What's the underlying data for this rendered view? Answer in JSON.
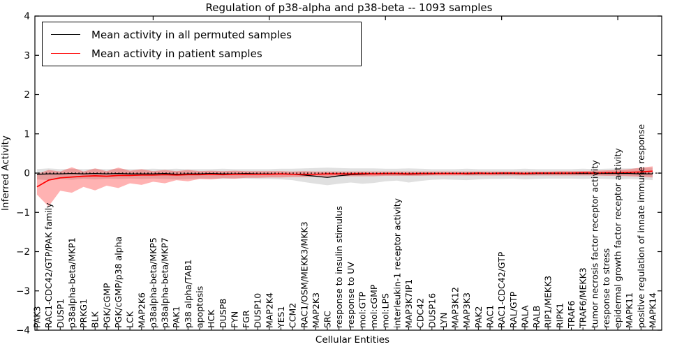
{
  "chart_data": {
    "type": "line",
    "title": "Regulation of p38-alpha and p38-beta -- 1093 samples",
    "xlabel": "Cellular Entities",
    "ylabel": "Inferred Activity",
    "ylim": [
      -4,
      4
    ],
    "yticks": [
      -4,
      -3,
      -2,
      -1,
      0,
      1,
      2,
      3,
      4
    ],
    "grid": false,
    "legend_position": "upper left",
    "zero_reference_line": {
      "value": 0,
      "style": "dotted",
      "color": "#000000"
    },
    "categories": [
      "PAK3",
      "RAC1-CDC42/GTP/PAK family",
      "DUSP1",
      "p38alpha-beta/MKP1",
      "PRKG1",
      "BLK",
      "PGK/cGMP",
      "PGK/cGMP/p38 alpha",
      "LCK",
      "MAP2K6",
      "p38alpha-beta/MKP5",
      "p38alpha-beta/MKP7",
      "PAK1",
      "p38 alpha/TAB1",
      "apoptosis",
      "HCK",
      "DUSP8",
      "FYN",
      "FGR",
      "DUSP10",
      "MAP2K4",
      "YES1",
      "CCM2",
      "RAC1/OSM/MEKK3/MKK3",
      "MAP2K3",
      "SRC",
      "response to insulin stimulus",
      "response to UV",
      "mol:GTP",
      "mol:cGMP",
      "mol:LPS",
      "interleukin-1 receptor activity",
      "MAP3K7IP1",
      "CDC42",
      "DUSP16",
      "LYN",
      "MAP3K12",
      "MAP3K3",
      "PAK2",
      "RAC1",
      "RAC1-CDC42/GTP",
      "RAL/GTP",
      "RALA",
      "RALB",
      "RIP1/MEKK3",
      "RIPK1",
      "TRAF6",
      "TRAF6/MEKK3",
      "tumor necrosis factor receptor activity",
      "response to stress",
      "epidermal growth factor receptor activity",
      "MAPK11",
      "positive regulation of innate immune response",
      "MAPK14"
    ],
    "series": [
      {
        "name": "Mean activity in all permuted samples",
        "color": "#000000",
        "band_color": "rgba(0,0,0,0.12)",
        "values": [
          -0.03,
          -0.02,
          -0.02,
          -0.01,
          -0.02,
          -0.01,
          -0.02,
          -0.01,
          -0.02,
          -0.02,
          -0.02,
          -0.01,
          -0.03,
          -0.02,
          -0.02,
          -0.01,
          -0.02,
          -0.02,
          -0.01,
          -0.02,
          -0.02,
          -0.02,
          -0.03,
          -0.05,
          -0.08,
          -0.11,
          -0.07,
          -0.04,
          -0.03,
          -0.02,
          -0.02,
          -0.02,
          -0.03,
          -0.02,
          -0.02,
          -0.01,
          -0.01,
          -0.02,
          -0.01,
          -0.01,
          -0.01,
          -0.01,
          -0.02,
          -0.01,
          -0.01,
          -0.01,
          -0.01,
          -0.01,
          -0.01,
          -0.01,
          -0.01,
          -0.01,
          -0.02,
          -0.02
        ],
        "band_lower": [
          -0.16,
          -0.18,
          -0.15,
          -0.17,
          -0.14,
          -0.16,
          -0.14,
          -0.15,
          -0.14,
          -0.15,
          -0.14,
          -0.15,
          -0.16,
          -0.15,
          -0.14,
          -0.14,
          -0.15,
          -0.14,
          -0.14,
          -0.15,
          -0.15,
          -0.16,
          -0.18,
          -0.23,
          -0.27,
          -0.31,
          -0.27,
          -0.24,
          -0.27,
          -0.25,
          -0.21,
          -0.19,
          -0.24,
          -0.2,
          -0.17,
          -0.16,
          -0.17,
          -0.18,
          -0.16,
          -0.15,
          -0.15,
          -0.14,
          -0.16,
          -0.15,
          -0.14,
          -0.14,
          -0.14,
          -0.15,
          -0.14,
          -0.15,
          -0.16,
          -0.15,
          -0.16,
          -0.18
        ],
        "band_upper": [
          0.1,
          0.12,
          0.1,
          0.11,
          0.1,
          0.11,
          0.1,
          0.11,
          0.1,
          0.1,
          0.11,
          0.1,
          0.11,
          0.1,
          0.1,
          0.1,
          0.11,
          0.1,
          0.1,
          0.1,
          0.1,
          0.11,
          0.11,
          0.12,
          0.13,
          0.14,
          0.13,
          0.12,
          0.12,
          0.12,
          0.11,
          0.11,
          0.12,
          0.11,
          0.1,
          0.1,
          0.1,
          0.11,
          0.1,
          0.1,
          0.1,
          0.1,
          0.11,
          0.1,
          0.1,
          0.1,
          0.1,
          0.11,
          0.1,
          0.11,
          0.12,
          0.12,
          0.13,
          0.14
        ]
      },
      {
        "name": "Mean activity in patient samples",
        "color": "#ff0000",
        "band_color": "rgba(255,0,0,0.30)",
        "values": [
          -0.35,
          -0.18,
          -0.12,
          -0.1,
          -0.08,
          -0.07,
          -0.08,
          -0.06,
          -0.06,
          -0.05,
          -0.05,
          -0.04,
          -0.05,
          -0.04,
          -0.04,
          -0.03,
          -0.04,
          -0.03,
          -0.03,
          -0.03,
          -0.03,
          -0.02,
          -0.03,
          -0.03,
          -0.03,
          -0.02,
          -0.02,
          -0.02,
          -0.01,
          -0.02,
          -0.01,
          -0.01,
          -0.02,
          -0.01,
          -0.01,
          -0.01,
          -0.01,
          -0.01,
          0.0,
          -0.01,
          0.0,
          0.0,
          -0.01,
          0.0,
          0.0,
          0.0,
          0.0,
          0.01,
          0.0,
          0.01,
          0.01,
          0.02,
          0.03,
          0.05
        ],
        "band_lower": [
          -0.55,
          -0.85,
          -0.45,
          -0.5,
          -0.35,
          -0.44,
          -0.32,
          -0.38,
          -0.26,
          -0.3,
          -0.22,
          -0.26,
          -0.18,
          -0.21,
          -0.15,
          -0.16,
          -0.13,
          -0.14,
          -0.12,
          -0.12,
          -0.11,
          -0.11,
          -0.1,
          -0.1,
          -0.09,
          -0.09,
          -0.08,
          -0.08,
          -0.08,
          -0.08,
          -0.07,
          -0.07,
          -0.07,
          -0.07,
          -0.06,
          -0.06,
          -0.06,
          -0.06,
          -0.06,
          -0.06,
          -0.06,
          -0.06,
          -0.06,
          -0.06,
          -0.06,
          -0.06,
          -0.06,
          -0.06,
          -0.06,
          -0.07,
          -0.07,
          -0.08,
          -0.09,
          -0.11
        ],
        "band_upper": [
          -0.02,
          0.08,
          0.04,
          0.15,
          0.04,
          0.12,
          0.05,
          0.14,
          0.06,
          0.1,
          0.05,
          0.08,
          0.05,
          0.08,
          0.05,
          0.06,
          0.05,
          0.06,
          0.05,
          0.05,
          0.05,
          0.05,
          0.04,
          0.05,
          0.04,
          0.04,
          0.04,
          0.04,
          0.04,
          0.04,
          0.04,
          0.04,
          0.04,
          0.04,
          0.04,
          0.04,
          0.04,
          0.04,
          0.04,
          0.04,
          0.04,
          0.04,
          0.04,
          0.04,
          0.04,
          0.05,
          0.05,
          0.05,
          0.06,
          0.07,
          0.08,
          0.1,
          0.14,
          0.17
        ]
      }
    ]
  },
  "legend": {
    "items": [
      {
        "label": "Mean activity in all permuted samples",
        "color": "#000000"
      },
      {
        "label": "Mean activity in patient samples",
        "color": "#ff0000"
      }
    ]
  }
}
